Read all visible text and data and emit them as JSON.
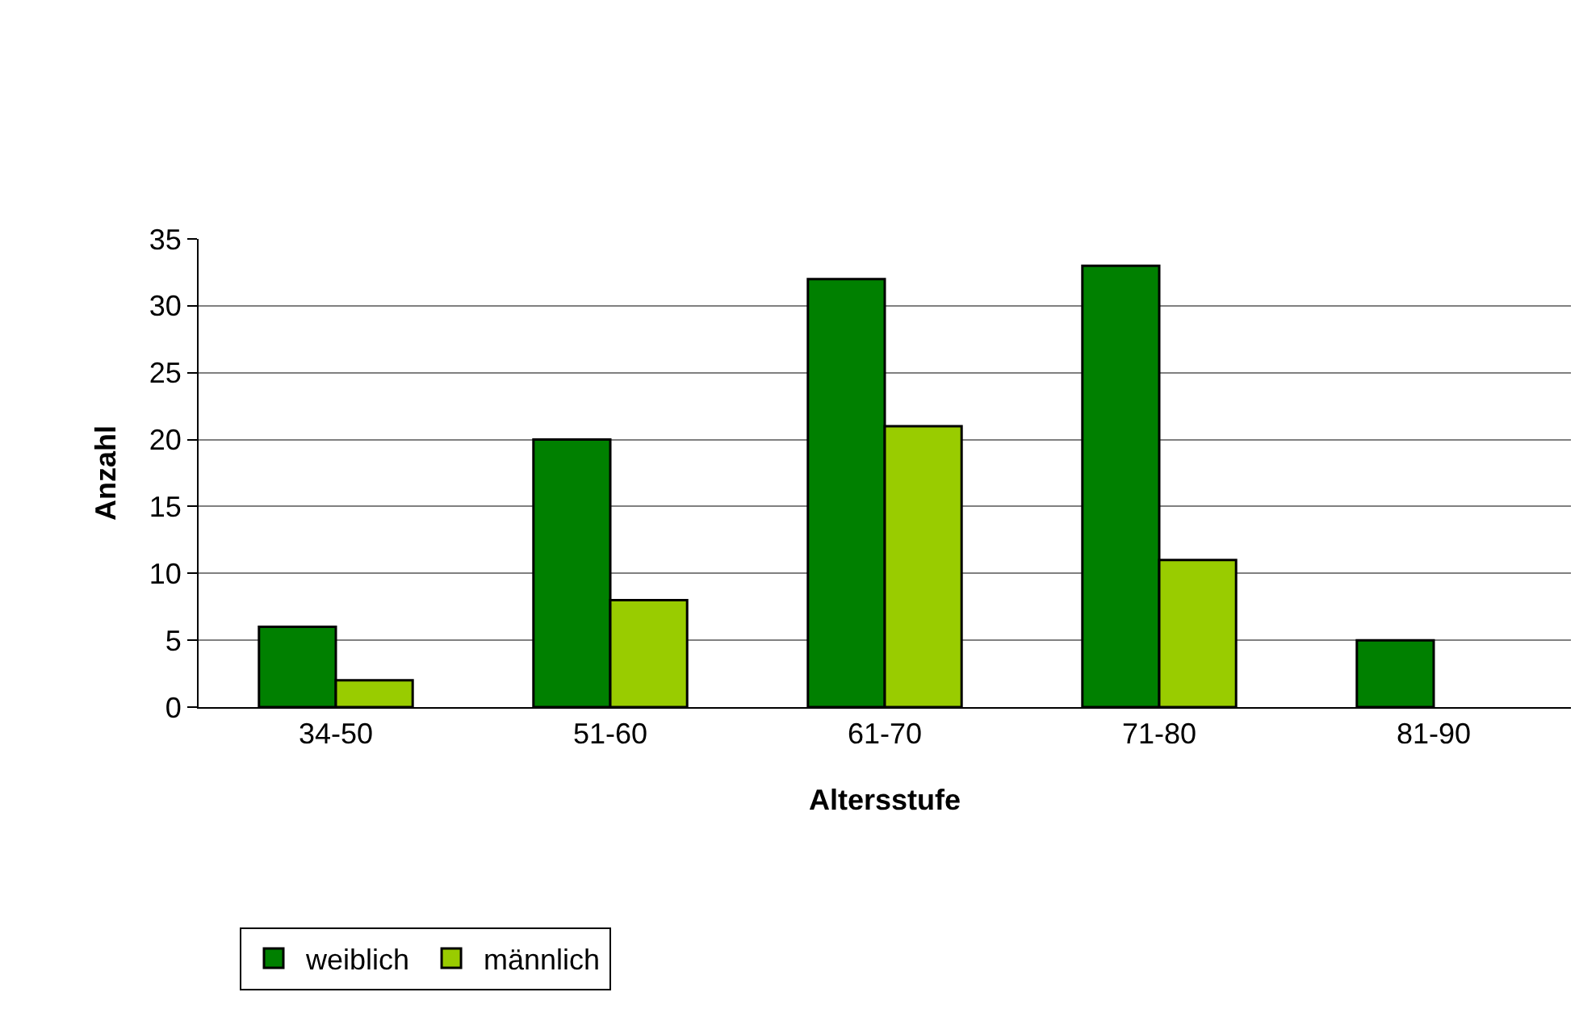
{
  "chart_data": {
    "type": "bar",
    "xlabel": "Altersstufe",
    "ylabel": "Anzahl",
    "categories": [
      "34-50",
      "51-60",
      "61-70",
      "71-80",
      "81-90"
    ],
    "series": [
      {
        "name": "weiblich",
        "color": "#008000",
        "values": [
          6,
          20,
          32,
          33,
          5
        ]
      },
      {
        "name": "männlich",
        "color": "#99cc00",
        "values": [
          2,
          8,
          21,
          11,
          null
        ]
      }
    ],
    "ylim": [
      0,
      35
    ],
    "yticks": [
      0,
      5,
      10,
      15,
      20,
      25,
      30,
      35
    ],
    "grid": "y",
    "legend": "bottom left"
  }
}
